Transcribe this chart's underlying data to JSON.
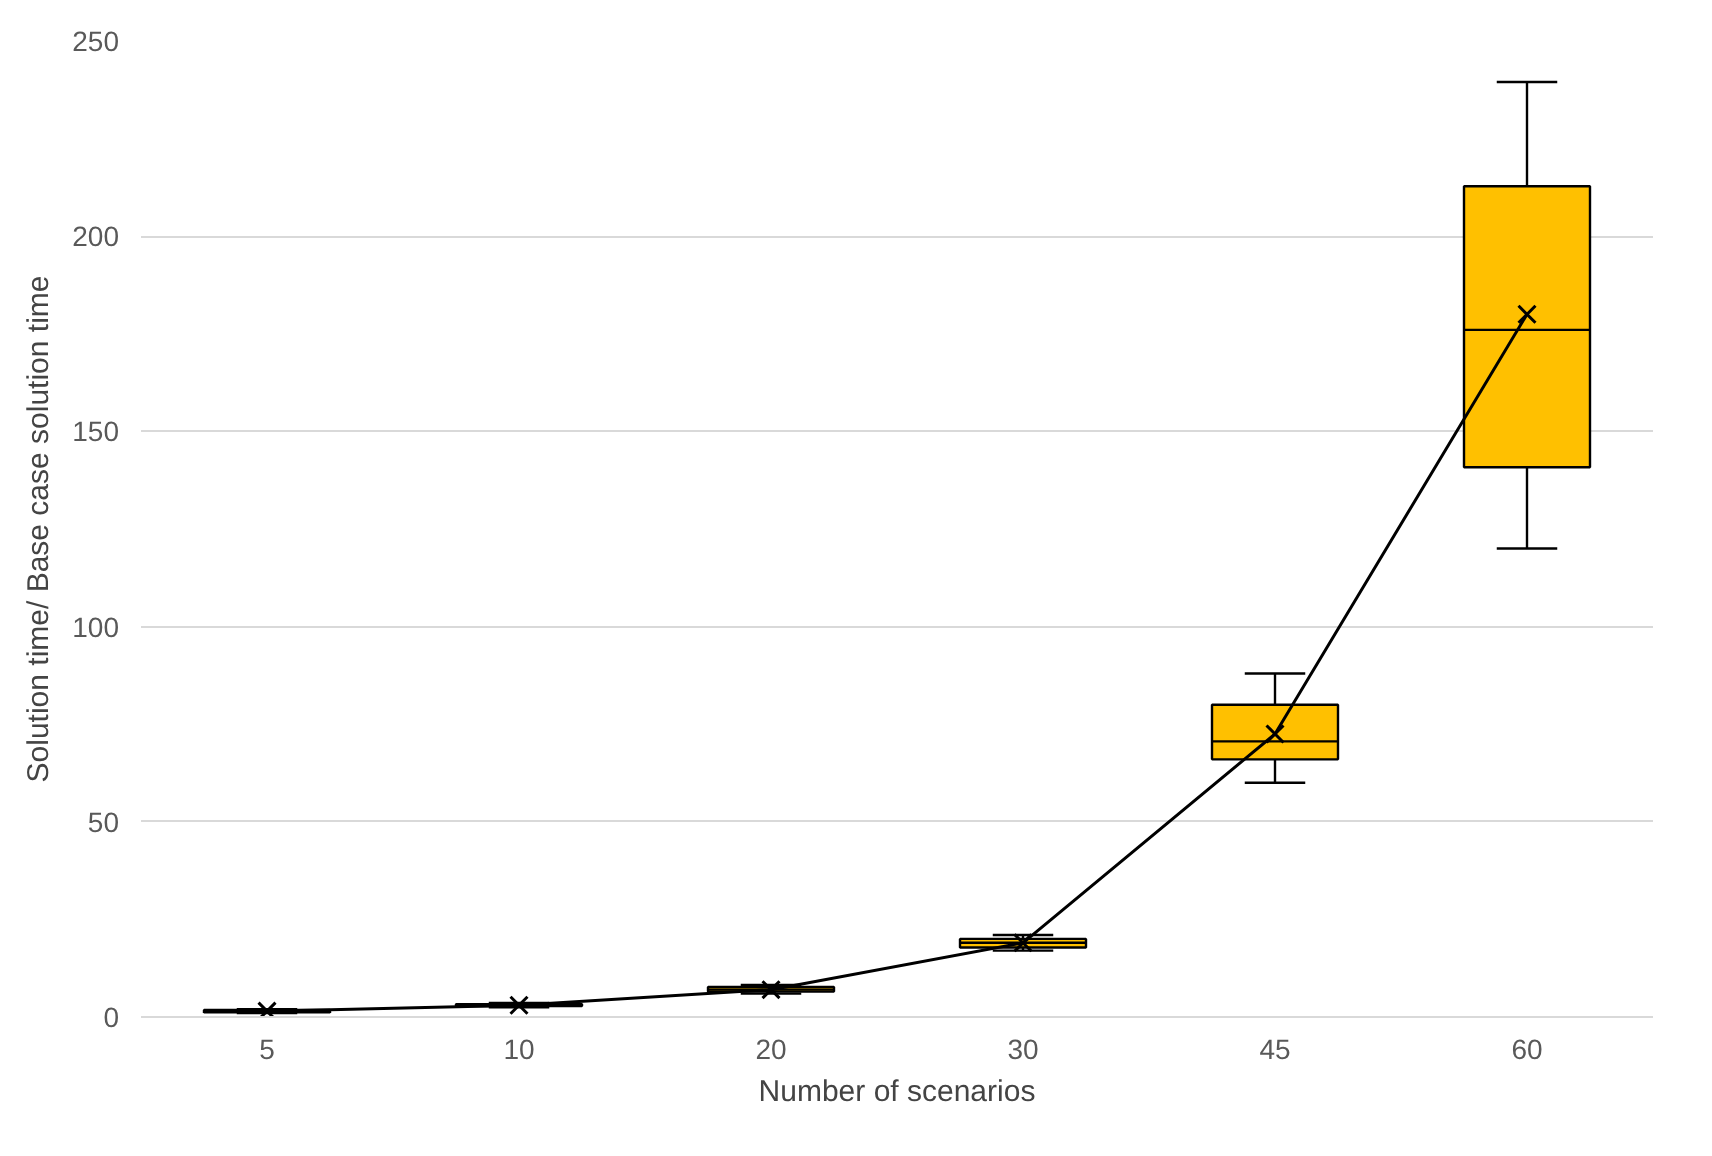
{
  "chart_data": {
    "type": "box",
    "xlabel": "Number of scenarios",
    "ylabel": "Solution time/ Base case solution time",
    "categories": [
      "5",
      "10",
      "20",
      "30",
      "45",
      "60"
    ],
    "color": "#ffc000",
    "ylim": [
      0,
      250
    ],
    "yticks": [
      0,
      50,
      100,
      150,
      200,
      250
    ],
    "grid": "y",
    "boxes": [
      {
        "low": 1,
        "q1": 1.2,
        "median": 1.5,
        "q3": 1.8,
        "high": 2
      },
      {
        "low": 2.5,
        "q1": 2.8,
        "median": 3,
        "q3": 3.3,
        "high": 3.6
      },
      {
        "low": 6,
        "q1": 6.5,
        "median": 7,
        "q3": 7.7,
        "high": 8.2
      },
      {
        "low": 17,
        "q1": 17.8,
        "median": 19,
        "q3": 20,
        "high": 21
      },
      {
        "low": 60,
        "q1": 66,
        "median": 70.6,
        "q3": 80,
        "high": 88
      },
      {
        "low": 120,
        "q1": 140.8,
        "median": 176,
        "q3": 212.8,
        "high": 239.5
      }
    ],
    "series": [
      {
        "type": "line",
        "color": "#000000",
        "marker": "cross",
        "line_style": "solid",
        "x": [
          "5",
          "10",
          "20",
          "30",
          "45",
          "60"
        ],
        "values": [
          1.5,
          3,
          7,
          19,
          72.5,
          180
        ]
      }
    ]
  }
}
